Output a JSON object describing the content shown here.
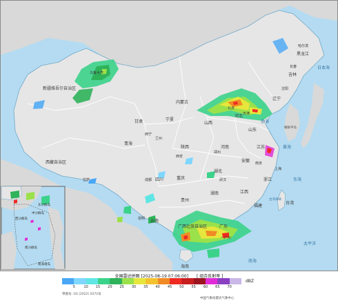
{
  "legend": {
    "title": "全国雷达拼图",
    "timestamp": "[2025-08-19 07:06:00]",
    "product": "[ 组合反射率 ]",
    "unit": "dBZ",
    "ticks": [
      "5",
      "10",
      "15",
      "20",
      "25",
      "30",
      "35",
      "40",
      "45",
      "50",
      "55",
      "60",
      "65",
      "70"
    ],
    "colors": [
      "#49a7f5",
      "#7fd7ff",
      "#5fe6e4",
      "#3bd28a",
      "#2fb35a",
      "#9ae14a",
      "#e6e63c",
      "#f3c22e",
      "#f08a25",
      "#ee2a23",
      "#c81e20",
      "#9b1520",
      "#e12bd8",
      "#8a3fc1",
      "#c9b8e8"
    ],
    "review_no": "审图号: GS (2022) 0372号",
    "credit": "中国气象局雷达气象中心"
  },
  "map": {
    "colors": {
      "sea": "#b4dbf1",
      "land": "#e6e6e6",
      "foreign": "#d9d9d9",
      "border": "#ffffff",
      "coast": "#6fa8c8"
    },
    "regions": [
      "新疆维吾尔自治区",
      "西藏自治区",
      "青海",
      "甘肃",
      "内蒙古",
      "宁夏",
      "陕西",
      "山西",
      "河北",
      "辽宁",
      "吉林",
      "黑龙江",
      "四川",
      "云南",
      "重庆",
      "湖北",
      "河南",
      "山东",
      "安徽",
      "江苏",
      "浙江",
      "江西",
      "湖南",
      "贵州",
      "广西壮族自治区",
      "广东",
      "福建",
      "台湾",
      "海南",
      "北京",
      "天津",
      "上海",
      "南京",
      "武汉",
      "郑州",
      "西安",
      "西宁",
      "兰州",
      "成都",
      "昆明",
      "广州",
      "拉萨",
      "乌鲁木齐",
      "沈阳",
      "长春",
      "哈尔滨"
    ],
    "seas": [
      "渤海",
      "黄海",
      "东海",
      "南海",
      "太平洋",
      "日本海",
      "台湾海峡",
      "朝鲜半岛"
    ],
    "inset_labels": [
      "南海诸岛",
      "中沙群岛",
      "西沙群岛",
      "南沙群岛",
      "东沙群岛"
    ]
  }
}
